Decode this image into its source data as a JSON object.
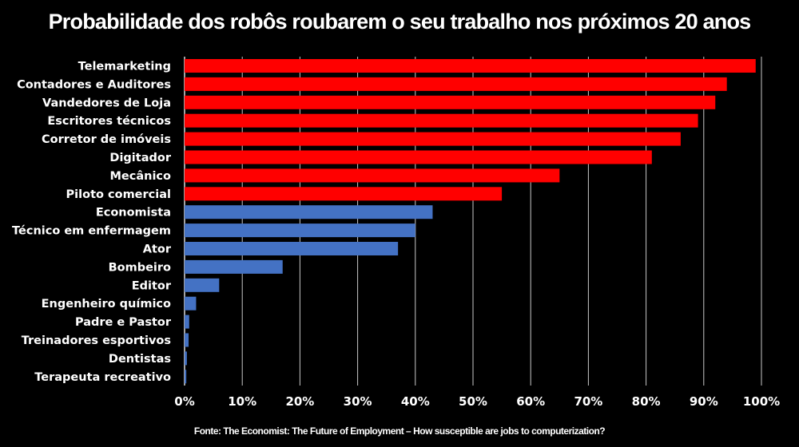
{
  "chart_data": {
    "type": "bar",
    "orientation": "horizontal",
    "title": "Probabilidade dos robôs roubarem o seu trabalho nos próximos 20 anos",
    "source": "Fonte: The Economist: The Future of Employment – How susceptible are jobs to computerization?",
    "categories": [
      "Telemarketing",
      "Contadores e Auditores",
      "Vandedores de Loja",
      "Escritores técnicos",
      "Corretor de imóveis",
      "Digitador",
      "Mecânico",
      "Piloto comercial",
      "Economista",
      "Técnico em enfermagem",
      "Ator",
      "Bombeiro",
      "Editor",
      "Engenheiro químico",
      "Padre e Pastor",
      "Treinadores esportivos",
      "Dentistas",
      "Terapeuta recreativo"
    ],
    "values": [
      99,
      94,
      92,
      89,
      86,
      81,
      65,
      55,
      43,
      40,
      37,
      17,
      6,
      2,
      0.8,
      0.7,
      0.4,
      0.3
    ],
    "bar_colors": [
      "#ff0000",
      "#ff0000",
      "#ff0000",
      "#ff0000",
      "#ff0000",
      "#ff0000",
      "#ff0000",
      "#ff0000",
      "#4472c4",
      "#4472c4",
      "#4472c4",
      "#4472c4",
      "#4472c4",
      "#4472c4",
      "#4472c4",
      "#4472c4",
      "#4472c4",
      "#4472c4"
    ],
    "xlim": [
      0,
      100
    ],
    "xticks": [
      "0%",
      "10%",
      "20%",
      "30%",
      "40%",
      "50%",
      "60%",
      "70%",
      "80%",
      "90%",
      "100%"
    ],
    "grid": true,
    "gridline_color": "#c8c8c8",
    "background": "#000000"
  }
}
